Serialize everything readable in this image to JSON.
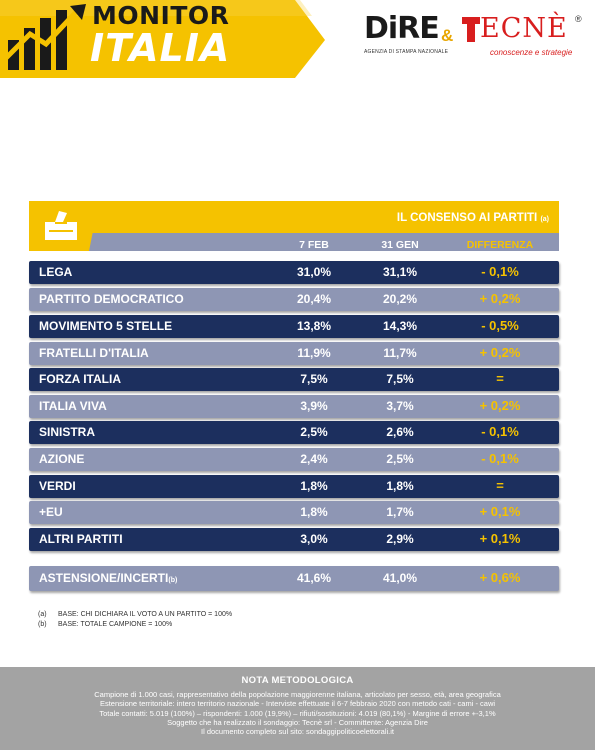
{
  "header": {
    "logo_top": "MONITOR",
    "logo_bottom": "ITALIA",
    "dire": "DiRE",
    "dire_sub": "AGENZIA DI STAMPA NAZIONALE",
    "amp": "&",
    "tecne": "ECNÈ",
    "tecne_reg": "®",
    "tecne_sub": "conoscenze e strategie"
  },
  "table": {
    "title": "IL CONSENSO AI PARTITI",
    "title_note": "(a)",
    "columns": [
      "7 FEB",
      "31 GEN",
      "DIFFERENZA"
    ],
    "rows": [
      {
        "party": "LEGA",
        "feb7": "31,0%",
        "jan31": "31,1%",
        "diff": "- 0,1%"
      },
      {
        "party": "PARTITO DEMOCRATICO",
        "feb7": "20,4%",
        "jan31": "20,2%",
        "diff": "+ 0,2%"
      },
      {
        "party": "MOVIMENTO 5 STELLE",
        "feb7": "13,8%",
        "jan31": "14,3%",
        "diff": "- 0,5%"
      },
      {
        "party": "FRATELLI D'ITALIA",
        "feb7": "11,9%",
        "jan31": "11,7%",
        "diff": "+ 0,2%"
      },
      {
        "party": "FORZA ITALIA",
        "feb7": "7,5%",
        "jan31": "7,5%",
        "diff": "="
      },
      {
        "party": "ITALIA VIVA",
        "feb7": "3,9%",
        "jan31": "3,7%",
        "diff": "+ 0,2%"
      },
      {
        "party": "SINISTRA",
        "feb7": "2,5%",
        "jan31": "2,6%",
        "diff": "- 0,1%"
      },
      {
        "party": "AZIONE",
        "feb7": "2,4%",
        "jan31": "2,5%",
        "diff": "- 0,1%"
      },
      {
        "party": "VERDI",
        "feb7": "1,8%",
        "jan31": "1,8%",
        "diff": "="
      },
      {
        "party": "+EU",
        "feb7": "1,8%",
        "jan31": "1,7%",
        "diff": "+ 0,1%"
      },
      {
        "party": "ALTRI PARTITI",
        "feb7": "3,0%",
        "jan31": "2,9%",
        "diff": "+ 0,1%"
      }
    ],
    "abstention": {
      "party": "ASTENSIONE/INCERTI",
      "note": "(b)",
      "feb7": "41,6%",
      "jan31": "41,0%",
      "diff": "+ 0,6%"
    }
  },
  "footnotes": [
    {
      "key": "(a)",
      "text": "BASE: CHI DICHIARA IL VOTO A UN PARTITO = 100%"
    },
    {
      "key": "(b)",
      "text": "BASE: TOTALE CAMPIONE = 100%"
    }
  ],
  "nota": {
    "title": "NOTA METODOLOGICA",
    "lines": [
      "Campione di 1.000 casi, rappresentativo della popolazione maggiorenne italiana, articolato per sesso, età, area geografica",
      "Estensione territoriale: intero territorio nazionale  - Interviste effettuate il 6-7 febbraio 2020 con metodo cati - cami - cawi",
      "Totale contatti: 5.019 (100%) – rispondenti: 1.000 (19,9%) – rifiuti/sostituzioni: 4.019 (80,1%) - Margine di errore +-3,1%",
      "Soggetto che ha realizzato il sondaggio: Tecnè srl  -  Committente: Agenzia Dire",
      "Il documento completo sul sito: sondaggipoliticoelettorali.it"
    ]
  },
  "colors": {
    "yellow": "#f5c200",
    "navy": "#1c2f5e",
    "lavender": "#8e96b4",
    "gray_note": "#a3a3a3",
    "red": "#d81e1e"
  },
  "chart_data": {
    "type": "table",
    "title": "IL CONSENSO AI PARTITI",
    "columns": [
      "7 FEB",
      "31 GEN",
      "DIFFERENZA"
    ],
    "categories": [
      "LEGA",
      "PARTITO DEMOCRATICO",
      "MOVIMENTO 5 STELLE",
      "FRATELLI D'ITALIA",
      "FORZA ITALIA",
      "ITALIA VIVA",
      "SINISTRA",
      "AZIONE",
      "VERDI",
      "+EU",
      "ALTRI PARTITI",
      "ASTENSIONE/INCERTI"
    ],
    "series": [
      {
        "name": "7 FEB",
        "values": [
          31.0,
          20.4,
          13.8,
          11.9,
          7.5,
          3.9,
          2.5,
          2.4,
          1.8,
          1.8,
          3.0,
          41.6
        ]
      },
      {
        "name": "31 GEN",
        "values": [
          31.1,
          20.2,
          14.3,
          11.7,
          7.5,
          3.7,
          2.6,
          2.5,
          1.8,
          1.7,
          2.9,
          41.0
        ]
      },
      {
        "name": "DIFFERENZA",
        "values": [
          -0.1,
          0.2,
          -0.5,
          0.2,
          0.0,
          0.2,
          -0.1,
          -0.1,
          0.0,
          0.1,
          0.1,
          0.6
        ]
      }
    ]
  }
}
